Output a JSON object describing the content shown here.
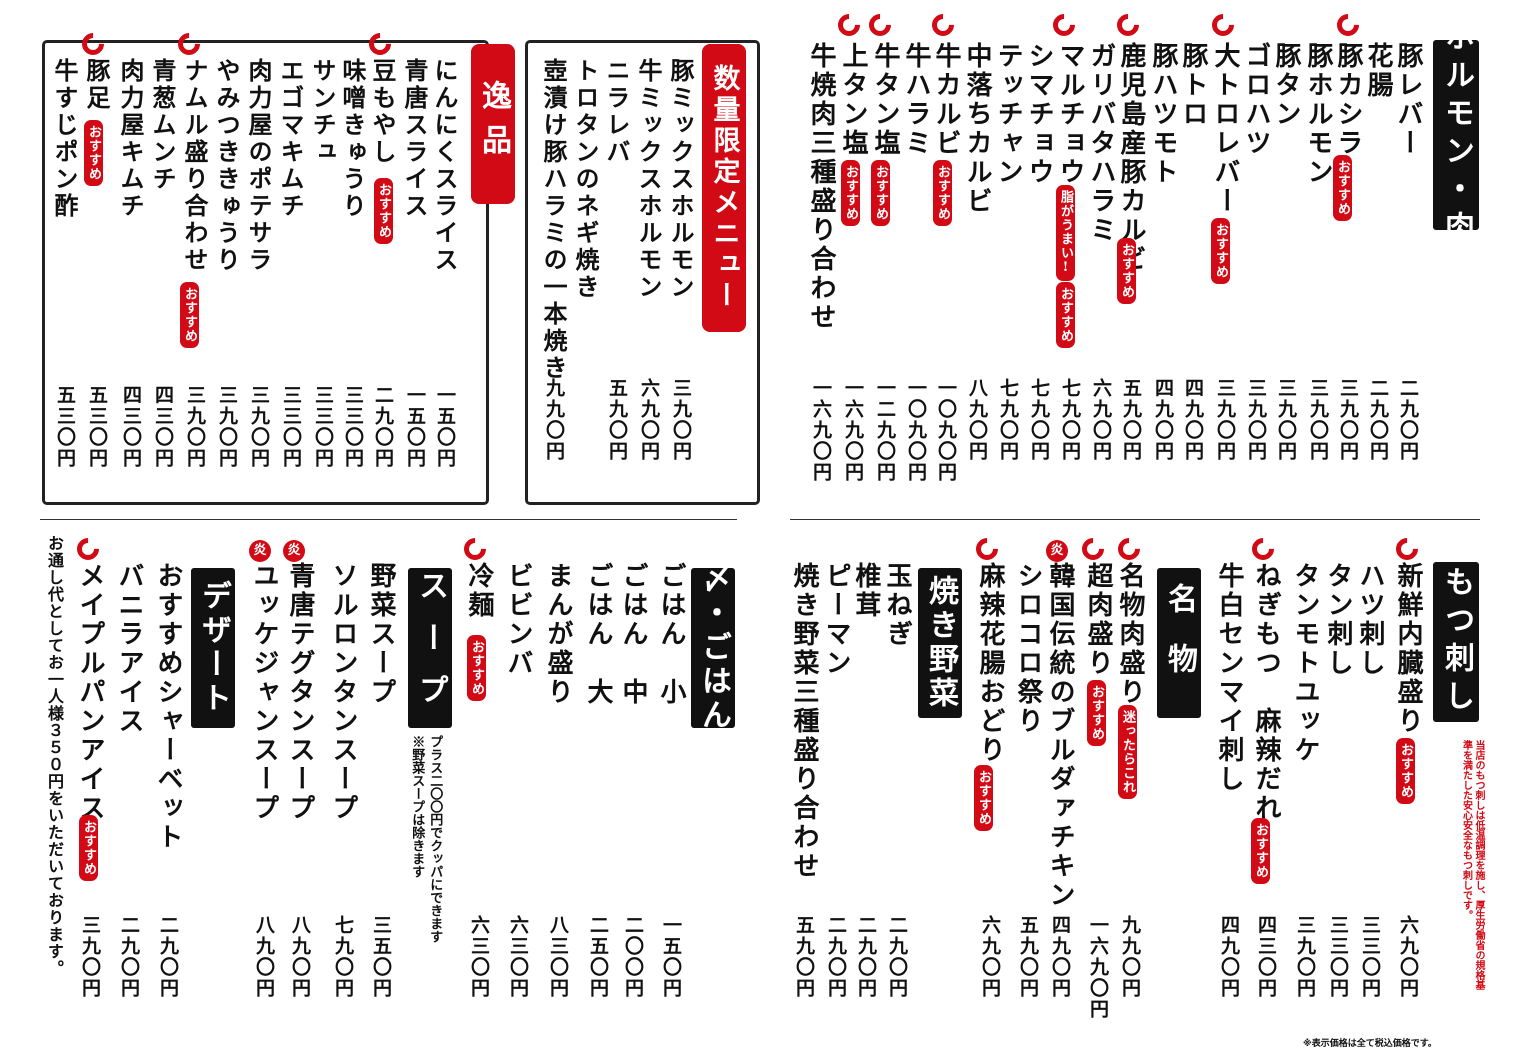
{
  "tags": {
    "osusume": "おすすめ",
    "aburaga": "脂がうまい!",
    "tabetara": "迷ったらこれ",
    "kan": "炎"
  },
  "horumon": {
    "title": "ホルモン・肉",
    "items": [
      {
        "name": "豚レバー",
        "price": "二九〇円"
      },
      {
        "name": "花腸",
        "price": "二九〇円"
      },
      {
        "name": "豚カシラ",
        "price": "三九〇円"
      },
      {
        "name": "豚ホルモン",
        "price": "三九〇円"
      },
      {
        "name": "豚タン",
        "price": "三九〇円"
      },
      {
        "name": "ゴロハツ",
        "price": "三九〇円"
      },
      {
        "name": "大トロレバー",
        "price": "三九〇円"
      },
      {
        "name": "豚トロ",
        "price": "四九〇円"
      },
      {
        "name": "豚ハツモト",
        "price": "四九〇円"
      },
      {
        "name": "鹿児島産豚カルビ",
        "price": "五九〇円"
      },
      {
        "name": "ガリバタハラミ",
        "price": "六九〇円"
      },
      {
        "name": "マルチョウ",
        "price": "七九〇円"
      },
      {
        "name": "シマチョウ",
        "price": "七九〇円"
      },
      {
        "name": "テッチャン",
        "price": "七九〇円"
      },
      {
        "name": "中落ちカルビ",
        "price": "八九〇円"
      },
      {
        "name": "牛カルビ",
        "price": "一〇九〇円"
      },
      {
        "name": "牛ハラミ",
        "price": "一〇九〇円"
      },
      {
        "name": "牛タン塩",
        "price": "一二九〇円"
      },
      {
        "name": "上タン塩",
        "price": "一六九〇円"
      },
      {
        "name": "牛焼肉三種盛り合わせ",
        "price": "一六九〇円"
      }
    ]
  },
  "limited": {
    "title": "数量限定メニュー",
    "items": [
      {
        "name": "豚ミックスホルモン",
        "price": "三九〇円"
      },
      {
        "name": "牛ミックスホルモン",
        "price": "六九〇円"
      },
      {
        "name": "ニラレバ",
        "price": "五九〇円"
      },
      {
        "name": "トロタンのネギ焼き",
        "price": ""
      },
      {
        "name": "壺漬け豚ハラミの一本焼き",
        "price": "九九〇円"
      }
    ]
  },
  "ippin": {
    "title": "逸品",
    "items": [
      {
        "name": "にんにくスライス",
        "price": "一五〇円"
      },
      {
        "name": "青唐スライス",
        "price": "一五〇円"
      },
      {
        "name": "豆もやし",
        "price": "二九〇円"
      },
      {
        "name": "味噌きゅうり",
        "price": "三三〇円"
      },
      {
        "name": "サンチュ",
        "price": "三三〇円"
      },
      {
        "name": "エゴマキムチ",
        "price": "三三〇円"
      },
      {
        "name": "肉力屋のポテサラ",
        "price": "三九〇円"
      },
      {
        "name": "やみつききゅうり",
        "price": "三九〇円"
      },
      {
        "name": "ナムル盛り合わせ",
        "price": "三九〇円"
      },
      {
        "name": "青葱ムンチ",
        "price": "四三〇円"
      },
      {
        "name": "肉力屋キムチ",
        "price": "四三〇円"
      },
      {
        "name": "豚足",
        "price": "五三〇円"
      },
      {
        "name": "牛すじポン酢",
        "price": "五三〇円"
      }
    ]
  },
  "motsu": {
    "title": "もつ刺し",
    "note": "当店のもつ刺しは低温調理を施し、厚生労働省の規格基準を満たした安心安全なもつ刺しです。",
    "items": [
      {
        "name": "新鮮内臓盛り",
        "price": "六九〇円"
      },
      {
        "name": "ハツ刺し",
        "price": "三三〇円"
      },
      {
        "name": "タン刺し",
        "price": "三三〇円"
      },
      {
        "name": "タンモトユッケ",
        "price": "三九〇円"
      },
      {
        "name": "ねぎもつ　麻辣だれ",
        "price": "四三〇円"
      },
      {
        "name": "牛白センマイ刺し",
        "price": "四九〇円"
      }
    ]
  },
  "meibutsu": {
    "title": "名物",
    "items": [
      {
        "name": "名物肉盛り",
        "price": "九九〇円"
      },
      {
        "name": "超肉盛り",
        "price": "一六九〇円"
      },
      {
        "name": "韓国伝統のブルダァチキン",
        "price": "四九〇円"
      },
      {
        "name": "シロコロ祭り",
        "price": "五九〇円"
      },
      {
        "name": "麻辣花腸おどり",
        "price": "六九〇円"
      }
    ]
  },
  "yasai": {
    "title": "焼き野菜",
    "items": [
      {
        "name": "玉ねぎ",
        "price": "二九〇円"
      },
      {
        "name": "椎茸",
        "price": "二九〇円"
      },
      {
        "name": "ピーマン",
        "price": "二九〇円"
      },
      {
        "name": "焼き野菜三種盛り合わせ",
        "price": "五九〇円"
      }
    ]
  },
  "gohan": {
    "title": "〆・ごはん",
    "items": [
      {
        "name": "ごはん　小",
        "price": "一五〇円"
      },
      {
        "name": "ごはん　中",
        "price": "二〇〇円"
      },
      {
        "name": "ごはん　大",
        "price": "二五〇円"
      },
      {
        "name": "まんが盛り",
        "price": "八三〇円"
      },
      {
        "name": "ビビンバ",
        "price": "六三〇円"
      },
      {
        "name": "冷麺",
        "price": "六三〇円"
      }
    ]
  },
  "soup": {
    "title": "スープ",
    "note1": "プラス二〇〇円でクッパにできます",
    "note2": "※野菜スープは除きます",
    "items": [
      {
        "name": "野菜スープ",
        "price": "三五〇円"
      },
      {
        "name": "ソルロンタンスープ",
        "price": "七九〇円"
      },
      {
        "name": "青唐テグタンスープ",
        "price": "八九〇円"
      },
      {
        "name": "ユッケジャンスープ",
        "price": "八九〇円"
      }
    ]
  },
  "dessert": {
    "title": "デザート",
    "items": [
      {
        "name": "おすすめシャーベット",
        "price": "二九〇円"
      },
      {
        "name": "バニラアイス",
        "price": "二九〇円"
      },
      {
        "name": "メイプルパンアイス",
        "price": "三九〇円"
      }
    ]
  },
  "footer": {
    "otoshi": "お通し代としてお一人様３５０円をいただいております。",
    "tax": "※表示価格は全て税込価格です。"
  }
}
